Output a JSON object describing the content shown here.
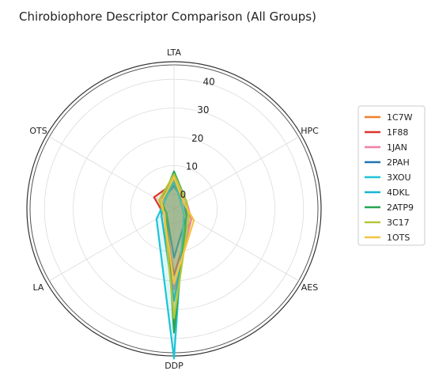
{
  "chart_data": {
    "type": "radar",
    "title": "Chirobiophore Descriptor Comparison (All Groups)",
    "axes": [
      "LTA",
      "HPC",
      "AES",
      "DDP",
      "LA",
      "OTS"
    ],
    "r_ticks": [
      0,
      10,
      20,
      30,
      40
    ],
    "r_range": [
      -5,
      45
    ],
    "grid": true,
    "legend_position": "right",
    "series": [
      {
        "name": "1C7W",
        "color": "#f07f2a",
        "values": [
          5,
          0,
          0,
          35,
          -2,
          1
        ]
      },
      {
        "name": "1F88",
        "color": "#d9362e",
        "values": [
          4,
          -1,
          2,
          18,
          -1,
          3
        ]
      },
      {
        "name": "1JAN",
        "color": "#ee7fa6",
        "values": [
          5,
          0,
          2,
          23,
          -2,
          1
        ]
      },
      {
        "name": "2PAH",
        "color": "#1f74b4",
        "values": [
          3,
          -1,
          0,
          12,
          -2,
          0
        ]
      },
      {
        "name": "3XOU",
        "color": "#1dc4d6",
        "values": [
          5,
          -2,
          -1,
          47,
          2,
          -1
        ]
      },
      {
        "name": "4DKL",
        "color": "#17b6d2",
        "values": [
          4,
          -1,
          1,
          27,
          0,
          0
        ]
      },
      {
        "name": "2ATP9",
        "color": "#26a552",
        "values": [
          8,
          0,
          0,
          38,
          -2,
          0
        ]
      },
      {
        "name": "3C17",
        "color": "#b5c73a",
        "values": [
          7,
          0,
          1,
          33,
          -1,
          1
        ]
      },
      {
        "name": "1OTS",
        "color": "#f5c342",
        "values": [
          6,
          -1,
          3,
          21,
          -1,
          0
        ]
      }
    ]
  }
}
